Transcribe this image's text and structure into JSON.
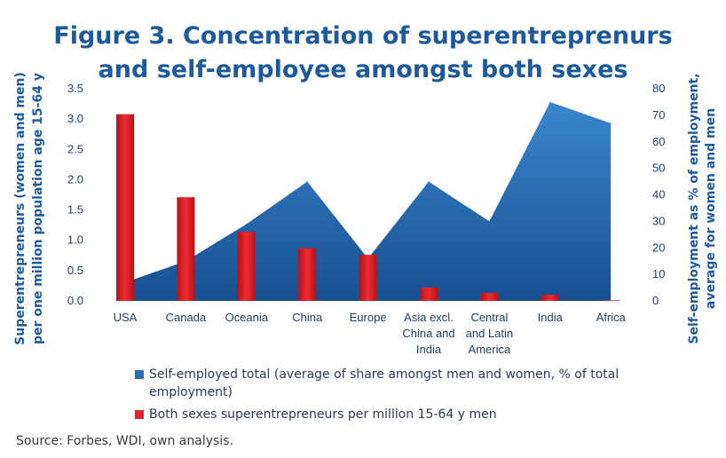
{
  "chart_data": {
    "type": "bar+area",
    "title_lines": [
      "Figure 3. Concentration of superentreprenurs",
      "and self-employee amongst both sexes"
    ],
    "categories": [
      "USA",
      "Canada",
      "Oceania",
      "China",
      "Europe",
      "Asia excl. China and India",
      "Central and Latin America",
      "India",
      "Africa"
    ],
    "category_lines": [
      [
        "USA"
      ],
      [
        "Canada"
      ],
      [
        "Oceania"
      ],
      [
        "China"
      ],
      [
        "Europe"
      ],
      [
        "Asia excl.",
        "China and",
        "India"
      ],
      [
        "Central",
        "and Latin",
        "America"
      ],
      [
        "India"
      ],
      [
        "Africa"
      ]
    ],
    "y_left": {
      "label_lines": [
        "Superentrepreneurs (women and men)",
        "per one million population age 15-64 y"
      ],
      "ylim": [
        0,
        3.5
      ],
      "ticks": [
        "0.0",
        "0.5",
        "1.0",
        "1.5",
        "2.0",
        "2.5",
        "3.0",
        "3.5"
      ]
    },
    "y_right": {
      "label_lines": [
        "Self-employment as % of employment,",
        "average for women and men"
      ],
      "ylim": [
        0,
        80
      ],
      "ticks": [
        "0",
        "10",
        "20",
        "30",
        "40",
        "50",
        "60",
        "70",
        "80"
      ]
    },
    "series": [
      {
        "name": "Self-employed total (average of share amongst men and women, % of total employment)",
        "type": "area",
        "axis": "right",
        "color": "#2a6fb6",
        "values": [
          7,
          15,
          29,
          45,
          16,
          45,
          30,
          75,
          67
        ]
      },
      {
        "name": "Both sexes superentrepreneurs per million 15-64 y men",
        "type": "bar",
        "axis": "left",
        "color": "#e0242b",
        "values": [
          3.08,
          1.71,
          1.14,
          0.87,
          0.76,
          0.22,
          0.13,
          0.1,
          0.01
        ]
      }
    ],
    "legend_position": "bottom",
    "grid": false
  },
  "source_note": "Source: Forbes, WDI, own analysis."
}
